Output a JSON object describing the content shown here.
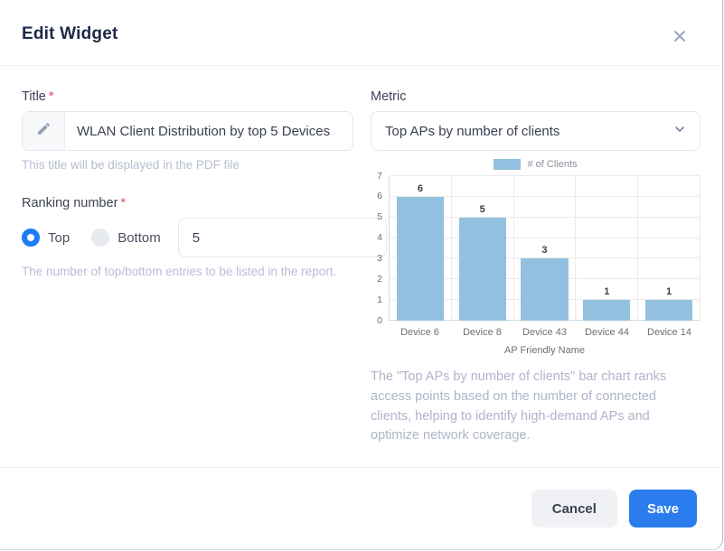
{
  "modal": {
    "title": "Edit Widget"
  },
  "form": {
    "title_field": {
      "label": "Title",
      "required_mark": "*",
      "value": "WLAN Client Distribution by top 5 Devices",
      "helper": "This title will be displayed in the PDF file"
    },
    "ranking": {
      "label": "Ranking number",
      "required_mark": "*",
      "options": [
        {
          "label": "Top",
          "selected": true
        },
        {
          "label": "Bottom",
          "selected": false
        }
      ],
      "value": "5",
      "helper": "The number of top/bottom entries to be listed in the report."
    },
    "metric": {
      "label": "Metric",
      "selected_option": "Top APs by number of clients"
    }
  },
  "chart_data": {
    "type": "bar",
    "legend": [
      "# of Clients"
    ],
    "legend_position": "top",
    "categories": [
      "Device 6",
      "Device 8",
      "Device 43",
      "Device 44",
      "Device 14"
    ],
    "values": [
      6,
      5,
      3,
      1,
      1
    ],
    "xlabel": "AP Friendly Name",
    "ylabel": "",
    "ylim": [
      0,
      7
    ],
    "ytick_step": 1,
    "grid": true,
    "bar_color": "#92c0de"
  },
  "metric_description": "The \"Top APs by number of clients\" bar chart ranks access points based on the number of connected clients, helping to identify high-demand APs and optimize network coverage.",
  "footer": {
    "cancel_label": "Cancel",
    "save_label": "Save"
  },
  "colors": {
    "accent_blue": "#2b7cec",
    "bar_blue": "#92c0de",
    "required_red": "#f4436a"
  }
}
